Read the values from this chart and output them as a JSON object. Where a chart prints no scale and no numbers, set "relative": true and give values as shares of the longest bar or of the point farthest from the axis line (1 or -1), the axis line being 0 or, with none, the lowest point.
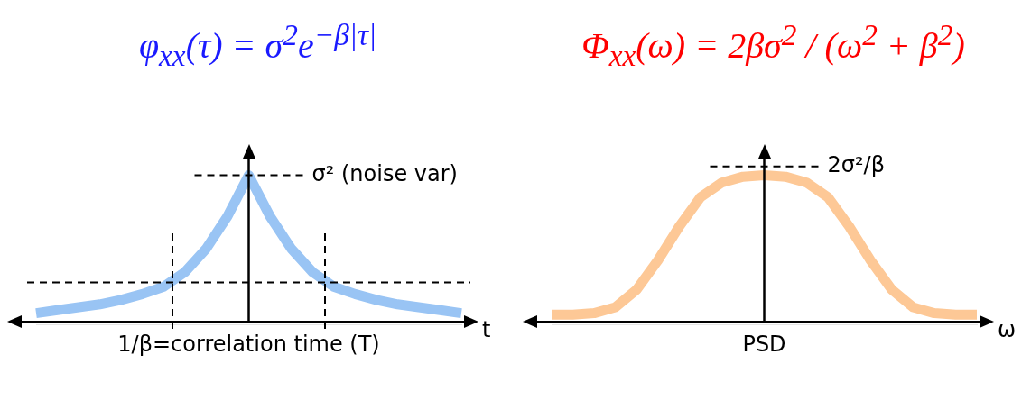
{
  "chart_data": [
    {
      "type": "line",
      "title": "φ$_{xx}$(τ) = σ$^{2}$e$^{−β|τ|}$",
      "xlabel": "t",
      "relative": true,
      "grid": false,
      "legend": false,
      "marker": "none",
      "line_style": "solid",
      "categories": [
        null,
        null,
        null,
        null,
        null,
        null,
        null,
        null,
        null,
        null,
        null,
        null,
        null,
        null,
        null,
        null,
        null,
        null,
        null,
        null,
        null
      ],
      "series": [
        {
          "color": "#99c4f4",
          "values": [
            0.06,
            0.08,
            0.1,
            0.12,
            0.15,
            0.19,
            0.24,
            0.34,
            0.5,
            0.72,
            1,
            0.72,
            0.5,
            0.34,
            0.24,
            0.19,
            0.15,
            0.12,
            0.1,
            0.08,
            0.06
          ]
        }
      ],
      "ref_lines": [
        {
          "axis": "y",
          "value": 1,
          "label": "σ² (noise var)",
          "line_style": "dashed",
          "color": "#000000"
        },
        {
          "axis": "y",
          "value": 0.27,
          "line_style": "dashed",
          "color": "#000000"
        }
      ],
      "annotations": [
        "1/β=correlation time (T)"
      ]
    },
    {
      "type": "line",
      "title": "Φ$_{xx}$(ω) = 2βσ$^{2}$ / (ω$^{2}$ + β$^{2}$)",
      "xlabel": "ω",
      "relative": true,
      "grid": false,
      "legend": false,
      "marker": "none",
      "line_style": "solid",
      "categories": [
        null,
        null,
        null,
        null,
        null,
        null,
        null,
        null,
        null,
        null,
        null,
        null,
        null,
        null,
        null,
        null,
        null,
        null,
        null,
        null,
        null
      ],
      "series": [
        {
          "color": "#fdc896",
          "values": [
            0.05,
            0.05,
            0.06,
            0.1,
            0.22,
            0.42,
            0.65,
            0.85,
            0.95,
            0.99,
            1,
            0.99,
            0.95,
            0.85,
            0.65,
            0.42,
            0.22,
            0.1,
            0.06,
            0.05,
            0.05
          ]
        }
      ],
      "ref_lines": [
        {
          "axis": "y",
          "value": 1.06,
          "label": "2σ²/β",
          "line_style": "dashed",
          "color": "#000000"
        }
      ],
      "annotations": [
        "PSD"
      ]
    }
  ]
}
